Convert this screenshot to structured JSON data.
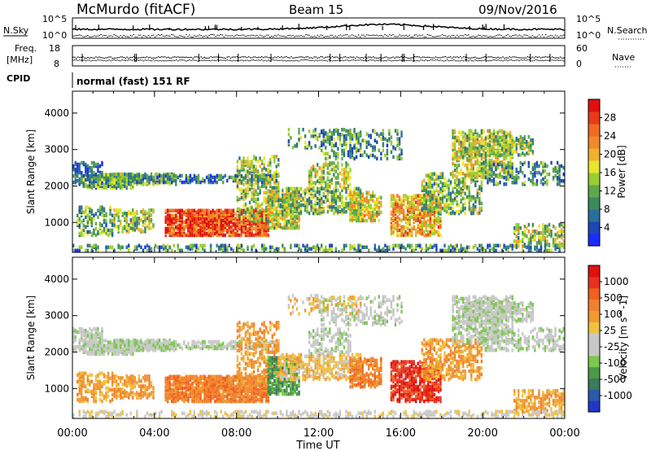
{
  "header": {
    "title": "McMurdo (fitACF)",
    "beam": "Beam 15",
    "date": "09/Nov/2016"
  },
  "top_panels": {
    "nsky_label": "N.Sky",
    "nsearch_label": "N.Search",
    "nsky_ticks": [
      "10^5",
      "10^0"
    ],
    "nsearch_ticks": [
      "10^5",
      "10^0"
    ],
    "freq_label_1": "Freq.",
    "freq_label_2": "[MHz]",
    "freq_ticks": [
      "18",
      "8"
    ],
    "nave_label": "Nave",
    "nave_ticks": [
      "60",
      "0"
    ],
    "cpid_label": "CPID",
    "cpid_text": "normal (fast) 151 RF"
  },
  "chart_data": [
    {
      "type": "heatmap",
      "title": "",
      "ylabel": "Slant Range [km]",
      "xlabel": "",
      "x_ticks": [
        "00:00",
        "04:00",
        "08:00",
        "12:00",
        "16:00",
        "20:00",
        "00:00"
      ],
      "y_ticks": [
        1000,
        2000,
        3000,
        4000
      ],
      "ylim": [
        180,
        4600
      ],
      "xlim_hours": [
        0,
        24
      ],
      "colorbar": {
        "label": "Power [dB]",
        "ticks": [
          4,
          8,
          12,
          16,
          20,
          24,
          28
        ],
        "range": [
          0,
          32
        ],
        "colors": [
          "#1a2bff",
          "#1d46b8",
          "#2a6e9c",
          "#3a8a5c",
          "#5fa84a",
          "#9acd32",
          "#e6e62a",
          "#f0b030",
          "#f08a28",
          "#f06a20",
          "#e83a18",
          "#e01010"
        ]
      }
    },
    {
      "type": "heatmap",
      "title": "",
      "ylabel": "Slant Range [km]",
      "xlabel": "Time UT",
      "x_ticks": [
        "00:00",
        "04:00",
        "08:00",
        "12:00",
        "16:00",
        "20:00",
        "00:00"
      ],
      "y_ticks": [
        1000,
        2000,
        3000,
        4000
      ],
      "ylim": [
        180,
        4600
      ],
      "xlim_hours": [
        0,
        24
      ],
      "colorbar": {
        "label": "Velocity [m s^-1]",
        "ticks": [
          "1000",
          "500",
          "100",
          "25",
          "-25",
          "-100",
          "-500",
          "-1000"
        ],
        "colors": [
          "#2037c8",
          "#2a5aa8",
          "#3c7a5c",
          "#4a9a48",
          "#7cc850",
          "#c8c8c8",
          "#c8c8c8",
          "#f0c040",
          "#f09a30",
          "#f08030",
          "#f06020",
          "#e83020",
          "#e01010"
        ]
      }
    }
  ]
}
